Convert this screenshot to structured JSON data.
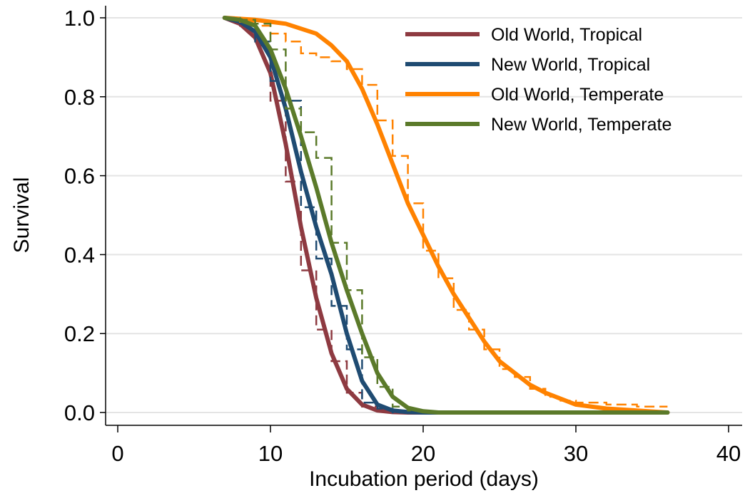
{
  "chart_data": {
    "type": "line",
    "title": "",
    "xlabel": "Incubation period (days)",
    "ylabel": "Survival",
    "xlim": [
      0,
      40
    ],
    "ylim": [
      0,
      1
    ],
    "xticks": [
      0,
      10,
      20,
      30,
      40
    ],
    "yticks": [
      0,
      0.2,
      0.4,
      0.6,
      0.8,
      1
    ],
    "xtick_labels": [
      "0",
      "10",
      "20",
      "30",
      "40"
    ],
    "ytick_labels": [
      "0.0",
      "0.2",
      "0.4",
      "0.6",
      "0.8",
      "1.0"
    ],
    "grid": "horizontal",
    "legend_position": "top-right",
    "series": [
      {
        "name": "Old World, Tropical",
        "color": "#8e3a41",
        "fitted": {
          "x": [
            7,
            8,
            9,
            10,
            11,
            12,
            13,
            14,
            15,
            16,
            17,
            18,
            19,
            20,
            36
          ],
          "y": [
            1.0,
            0.985,
            0.95,
            0.86,
            0.68,
            0.47,
            0.29,
            0.15,
            0.06,
            0.02,
            0.005,
            0.001,
            0,
            0,
            0
          ]
        },
        "km_steps": {
          "x": [
            7,
            8,
            9,
            10,
            11,
            12,
            13,
            14,
            15,
            16,
            17,
            18,
            19
          ],
          "y": [
            1.0,
            0.98,
            0.93,
            0.79,
            0.585,
            0.36,
            0.21,
            0.13,
            0.05,
            0.015,
            0.005,
            0,
            0
          ]
        }
      },
      {
        "name": "New World, Tropical",
        "color": "#1f4b72",
        "fitted": {
          "x": [
            7,
            8,
            9,
            10,
            11,
            12,
            13,
            14,
            15,
            16,
            17,
            18,
            19,
            20,
            36
          ],
          "y": [
            1.0,
            0.99,
            0.965,
            0.9,
            0.77,
            0.61,
            0.47,
            0.35,
            0.2,
            0.08,
            0.02,
            0.005,
            0.001,
            0,
            0
          ]
        },
        "km_steps": {
          "x": [
            7,
            8,
            9,
            10,
            11,
            12,
            13,
            14,
            15,
            16,
            17,
            18,
            19
          ],
          "y": [
            1.0,
            0.985,
            0.94,
            0.84,
            0.79,
            0.52,
            0.39,
            0.27,
            0.16,
            0.025,
            0.01,
            0,
            0
          ]
        }
      },
      {
        "name": "Old World, Temperate",
        "color": "#ff8200",
        "fitted": {
          "x": [
            7,
            9,
            11,
            13,
            14,
            15,
            16,
            17,
            18,
            19,
            20,
            21,
            22,
            23,
            24,
            25,
            26,
            27,
            28,
            30,
            32,
            34,
            36
          ],
          "y": [
            1.0,
            0.995,
            0.985,
            0.96,
            0.93,
            0.89,
            0.82,
            0.73,
            0.63,
            0.53,
            0.45,
            0.37,
            0.3,
            0.24,
            0.18,
            0.13,
            0.1,
            0.07,
            0.05,
            0.02,
            0.01,
            0.005,
            0
          ]
        },
        "km_steps": {
          "x": [
            7,
            8,
            9,
            10,
            11,
            12,
            13,
            14,
            15,
            16,
            17,
            18,
            19,
            20,
            21,
            22,
            23,
            24,
            25,
            26,
            27,
            28,
            29,
            30,
            32,
            34,
            36
          ],
          "y": [
            1.0,
            0.99,
            0.98,
            0.96,
            0.94,
            0.91,
            0.9,
            0.89,
            0.87,
            0.83,
            0.74,
            0.65,
            0.53,
            0.41,
            0.34,
            0.26,
            0.21,
            0.16,
            0.11,
            0.09,
            0.06,
            0.04,
            0.03,
            0.025,
            0.02,
            0.015,
            0.015
          ]
        }
      },
      {
        "name": "New World, Temperate",
        "color": "#5b7a2a",
        "fitted": {
          "x": [
            7,
            8,
            9,
            10,
            11,
            12,
            13,
            14,
            15,
            16,
            17,
            18,
            19,
            20,
            21,
            36
          ],
          "y": [
            1.0,
            0.995,
            0.98,
            0.92,
            0.82,
            0.7,
            0.57,
            0.43,
            0.31,
            0.2,
            0.1,
            0.04,
            0.012,
            0.003,
            0,
            0
          ]
        },
        "km_steps": {
          "x": [
            7,
            8,
            9,
            10,
            11,
            12,
            13,
            14,
            15,
            16,
            17,
            18,
            19,
            20
          ],
          "y": [
            1.0,
            0.995,
            0.985,
            0.92,
            0.77,
            0.71,
            0.645,
            0.43,
            0.31,
            0.14,
            0.065,
            0.015,
            0.005,
            0
          ]
        }
      }
    ]
  }
}
